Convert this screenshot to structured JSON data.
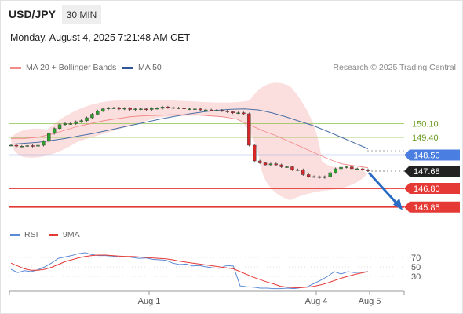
{
  "header": {
    "symbol": "USD/JPY",
    "timeframe": "30 MIN",
    "datetime": "Monday, August 4, 2025 7:21:48 AM CET"
  },
  "legend": {
    "bollinger": "MA 20 + Bollinger Bands",
    "ma50": "MA 50",
    "credit": "Research © 2025 Trading Central"
  },
  "rsi_legend": {
    "rsi": "RSI",
    "ma": "9MA"
  },
  "colors": {
    "candle_up": "#2ca02c",
    "candle_down": "#d62728",
    "ma50": "#4a6fa5",
    "bollinger": "#f4a3a3",
    "resistance": "#8bc34a",
    "pivot": "#4a7ee0",
    "support": "#e53935",
    "rsi": "#5b8ad6",
    "rsi_ma": "#e53935"
  },
  "chart_data": [
    {
      "type": "line",
      "title": "USD/JPY",
      "x_ticks": [
        "Aug 1",
        "Aug 4",
        "Aug 5"
      ],
      "price_levels": [
        {
          "value": 150.1,
          "label": "150.10",
          "kind": "resistance"
        },
        {
          "value": 149.4,
          "label": "149.40",
          "kind": "resistance"
        },
        {
          "value": 148.5,
          "label": "148.50",
          "kind": "pivot"
        },
        {
          "value": 147.68,
          "label": "147.68",
          "kind": "last"
        },
        {
          "value": 146.8,
          "label": "146.80",
          "kind": "support"
        },
        {
          "value": 145.85,
          "label": "145.85",
          "kind": "support"
        }
      ],
      "ylim": [
        145.0,
        152.4
      ],
      "series": [
        {
          "name": "MA 20 + Bollinger Bands",
          "values": [
            149.35,
            149.35,
            149.4,
            149.55,
            149.75,
            149.95,
            150.1,
            150.25,
            150.35,
            150.45,
            150.5,
            150.52,
            150.55,
            150.55,
            150.55,
            150.5,
            150.45,
            150.35,
            150.05,
            149.75,
            149.5,
            149.2,
            148.9,
            148.6,
            148.3,
            148.05,
            147.95,
            147.85
          ]
        },
        {
          "name": "MA 50",
          "values": [
            149.05,
            149.1,
            149.15,
            149.25,
            149.35,
            149.48,
            149.6,
            149.75,
            149.9,
            150.05,
            150.2,
            150.35,
            150.48,
            150.6,
            150.7,
            150.78,
            150.83,
            150.85,
            150.8,
            150.65,
            150.45,
            150.22,
            150.0,
            149.72,
            149.42,
            149.12,
            148.82
          ]
        }
      ],
      "candles": [
        149.0,
        148.95,
        148.95,
        148.98,
        148.95,
        149.0,
        149.2,
        149.6,
        149.85,
        150.05,
        150.1,
        150.1,
        150.2,
        150.25,
        150.4,
        150.58,
        150.75,
        150.85,
        150.9,
        150.9,
        150.85,
        150.88,
        150.82,
        150.85,
        150.85,
        150.82,
        150.88,
        150.88,
        150.95,
        150.92,
        150.9,
        150.9,
        150.85,
        150.85,
        150.85,
        150.8,
        150.8,
        150.78,
        150.78,
        150.75,
        150.7,
        150.65,
        150.65,
        150.6,
        149.0,
        148.2,
        148.1,
        148.0,
        148.05,
        148.0,
        147.9,
        147.9,
        147.75,
        147.75,
        147.5,
        147.4,
        147.4,
        147.35,
        147.4,
        147.6,
        147.8,
        147.88,
        147.9,
        147.8,
        147.8,
        147.75,
        147.7
      ],
      "forecast": {
        "from": 147.68,
        "to": 145.85
      }
    },
    {
      "type": "line",
      "title": "RSI",
      "ylim": [
        0,
        100
      ],
      "y_ticks": [
        70,
        50,
        30
      ],
      "series": [
        {
          "name": "RSI",
          "values": [
            45,
            38,
            42,
            40,
            44,
            50,
            58,
            68,
            71,
            74,
            78,
            80,
            76,
            74,
            74,
            73,
            71,
            72,
            70,
            68,
            69,
            66,
            65,
            64,
            58,
            55,
            56,
            52,
            53,
            50,
            48,
            47,
            53,
            52,
            10,
            8,
            7,
            5,
            5,
            4,
            4,
            5,
            4,
            6,
            8,
            15,
            22,
            30,
            40,
            35,
            40,
            38,
            39,
            40
          ]
        },
        {
          "name": "9MA",
          "values": [
            58,
            52,
            46,
            43,
            43,
            45,
            49,
            55,
            61,
            65,
            69,
            72,
            74,
            75,
            75,
            74,
            73,
            72,
            72,
            71,
            70,
            69,
            68,
            67,
            65,
            62,
            60,
            58,
            56,
            54,
            52,
            50,
            48,
            46,
            40,
            34,
            28,
            23,
            18,
            14,
            9,
            7,
            6,
            6,
            7,
            9,
            12,
            16,
            21,
            26,
            30,
            34,
            37,
            40
          ]
        }
      ]
    }
  ]
}
